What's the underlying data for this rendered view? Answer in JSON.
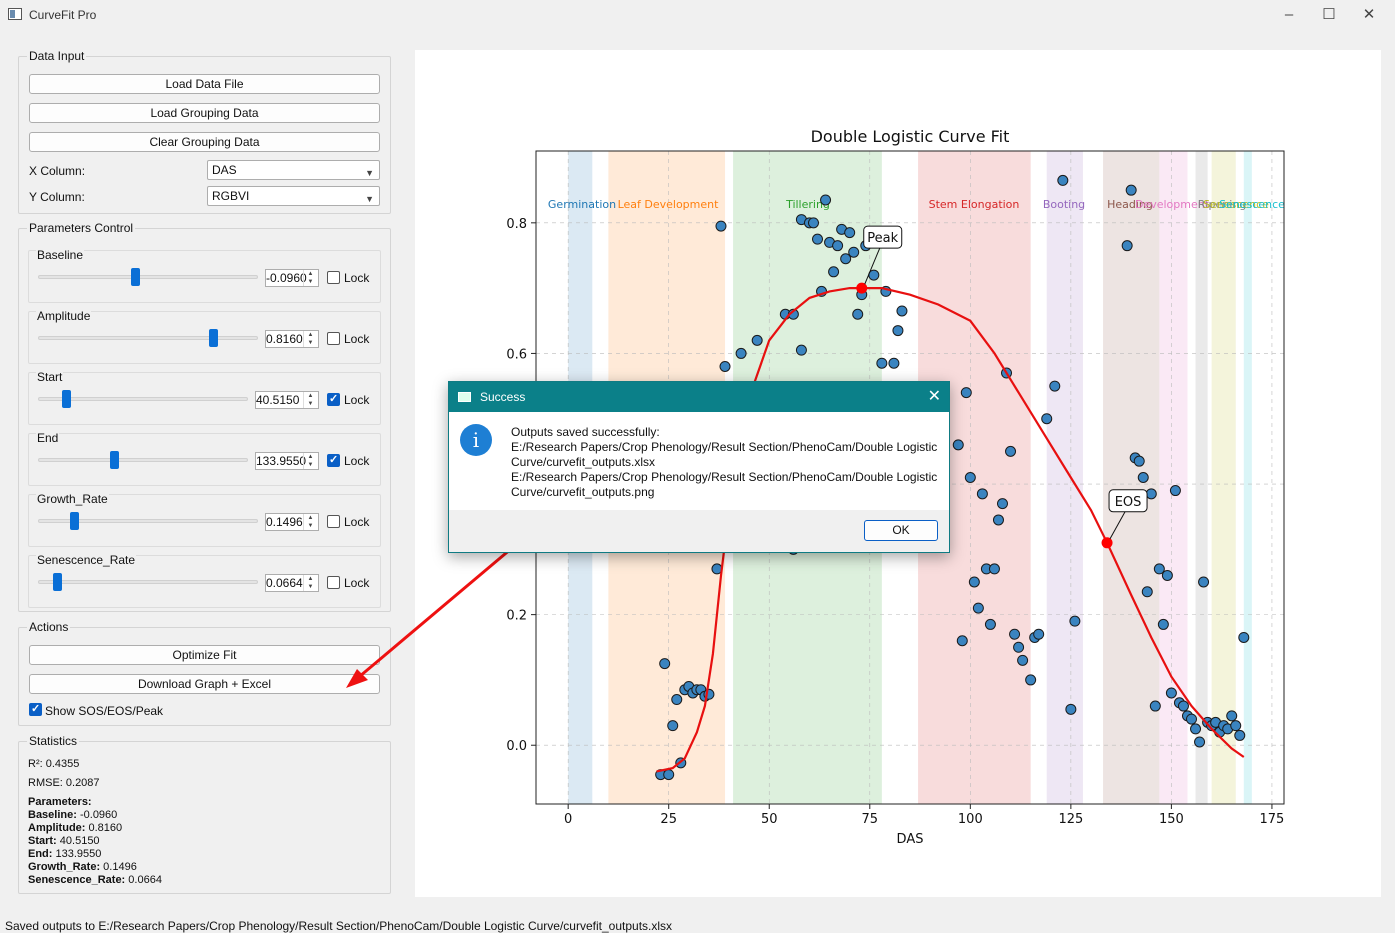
{
  "window": {
    "title": "CurveFit Pro"
  },
  "data_input": {
    "title": "Data Input",
    "load_data": "Load Data File",
    "load_grouping": "Load Grouping Data",
    "clear_grouping": "Clear Grouping Data",
    "x_label": "X Column:",
    "x_value": "DAS",
    "y_label": "Y Column:",
    "y_value": "RGBVI"
  },
  "params": {
    "title": "Parameters Control",
    "lock_label": "Lock",
    "items": [
      {
        "name": "Baseline",
        "value": "-0.0960",
        "locked": false,
        "level": 0.44
      },
      {
        "name": "Amplitude",
        "value": "0.8160",
        "locked": false,
        "level": 0.81
      },
      {
        "name": "Start",
        "value": "40.5150",
        "locked": true,
        "level": 0.12
      },
      {
        "name": "End",
        "value": "133.9550",
        "locked": true,
        "level": 0.36
      },
      {
        "name": "Growth_Rate",
        "value": "0.1496",
        "locked": false,
        "level": 0.15
      },
      {
        "name": "Senescence_Rate",
        "value": "0.0664",
        "locked": false,
        "level": 0.07
      }
    ]
  },
  "actions": {
    "title": "Actions",
    "optimize": "Optimize Fit",
    "download": "Download Graph + Excel",
    "show_markers": "Show SOS/EOS/Peak",
    "show_markers_checked": true
  },
  "statistics": {
    "title": "Statistics",
    "r2": "R²: 0.4355",
    "rmse": "RMSE: 0.2087",
    "params_header": "Parameters:",
    "lines": [
      {
        "k": "Baseline:",
        "v": " -0.0960"
      },
      {
        "k": "Amplitude:",
        "v": " 0.8160"
      },
      {
        "k": "Start:",
        "v": " 40.5150"
      },
      {
        "k": "End:",
        "v": " 133.9550"
      },
      {
        "k": "Growth_Rate:",
        "v": " 0.1496"
      },
      {
        "k": "Senescence_Rate:",
        "v": " 0.0664"
      }
    ]
  },
  "status": "Saved outputs to E:/Research Papers/Crop Phenology/Result Section/PhenoCam/Double Logistic Curve/curvefit_outputs.xlsx",
  "dialog": {
    "title": "Success",
    "message": "Outputs saved successfully:\nE:/Research Papers/Crop Phenology/Result Section/PhenoCam/Double Logistic\nCurve/curvefit_outputs.xlsx\nE:/Research Papers/Crop Phenology/Result Section/PhenoCam/Double Logistic\nCurve/curvefit_outputs.png",
    "ok": "OK"
  },
  "chart_data": {
    "type": "scatter",
    "title": "Double Logistic Curve Fit",
    "xlabel": "DAS",
    "ylabel": "",
    "xlim": [
      -8,
      178
    ],
    "ylim": [
      -0.09,
      0.91
    ],
    "xticks": [
      0,
      25,
      50,
      75,
      100,
      125,
      150,
      175
    ],
    "yticks": [
      0.0,
      0.2,
      0.4,
      0.6,
      0.8
    ],
    "grid": true,
    "stages": [
      {
        "name": "Germination",
        "x0": 0,
        "x1": 6,
        "color": "#1f77b4"
      },
      {
        "name": "Leaf Development",
        "x0": 10,
        "x1": 39,
        "color": "#ff7f0e"
      },
      {
        "name": "Tillering",
        "x0": 41,
        "x1": 78,
        "color": "#2ca02c"
      },
      {
        "name": "Stem Elongation",
        "x0": 87,
        "x1": 115,
        "color": "#d62728"
      },
      {
        "name": "Booting",
        "x0": 119,
        "x1": 128,
        "color": "#9467bd"
      },
      {
        "name": "Heading",
        "x0": 133,
        "x1": 147,
        "color": "#8c564b"
      },
      {
        "name": "Development",
        "x0": 147,
        "x1": 154,
        "color": "#e377c2"
      },
      {
        "name": "Ripening",
        "x0": 156,
        "x1": 159,
        "color": "#7f7f7f"
      },
      {
        "name": "Senescence",
        "x0": 160,
        "x1": 166,
        "color": "#bcbd22"
      },
      {
        "name": "Senescence",
        "x0": 168,
        "x1": 170,
        "color": "#17becf"
      }
    ],
    "points": [
      [
        23,
        -0.045
      ],
      [
        24,
        0.125
      ],
      [
        25,
        -0.045
      ],
      [
        26,
        0.03
      ],
      [
        27,
        0.07
      ],
      [
        28,
        -0.027
      ],
      [
        29,
        0.085
      ],
      [
        30,
        0.09
      ],
      [
        31,
        0.08
      ],
      [
        32,
        0.085
      ],
      [
        33,
        0.085
      ],
      [
        34,
        0.075
      ],
      [
        35,
        0.078
      ],
      [
        37,
        0.27
      ],
      [
        38,
        0.795
      ],
      [
        39,
        0.58
      ],
      [
        43,
        0.6
      ],
      [
        47,
        0.62
      ],
      [
        54,
        0.66
      ],
      [
        56,
        0.66
      ],
      [
        56,
        0.3
      ],
      [
        58,
        0.605
      ],
      [
        58,
        0.805
      ],
      [
        60,
        0.8
      ],
      [
        61,
        0.8
      ],
      [
        62,
        0.775
      ],
      [
        63,
        0.695
      ],
      [
        64,
        0.835
      ],
      [
        65,
        0.77
      ],
      [
        66,
        0.725
      ],
      [
        67,
        0.765
      ],
      [
        68,
        0.79
      ],
      [
        69,
        0.745
      ],
      [
        70,
        0.785
      ],
      [
        71,
        0.755
      ],
      [
        72,
        0.66
      ],
      [
        73,
        0.69
      ],
      [
        74,
        0.765
      ],
      [
        76,
        0.72
      ],
      [
        78,
        0.585
      ],
      [
        79,
        0.695
      ],
      [
        81,
        0.585
      ],
      [
        82,
        0.635
      ],
      [
        83,
        0.665
      ],
      [
        97,
        0.46
      ],
      [
        98,
        0.16
      ],
      [
        99,
        0.54
      ],
      [
        100,
        0.41
      ],
      [
        101,
        0.25
      ],
      [
        102,
        0.21
      ],
      [
        103,
        0.385
      ],
      [
        104,
        0.27
      ],
      [
        105,
        0.185
      ],
      [
        106,
        0.27
      ],
      [
        107,
        0.345
      ],
      [
        108,
        0.37
      ],
      [
        109,
        0.57
      ],
      [
        110,
        0.45
      ],
      [
        111,
        0.17
      ],
      [
        112,
        0.15
      ],
      [
        113,
        0.13
      ],
      [
        115,
        0.1
      ],
      [
        116,
        0.165
      ],
      [
        117,
        0.17
      ],
      [
        119,
        0.5
      ],
      [
        121,
        0.55
      ],
      [
        123,
        0.865
      ],
      [
        125,
        0.055
      ],
      [
        126,
        0.19
      ],
      [
        139,
        0.765
      ],
      [
        140,
        0.85
      ],
      [
        141,
        0.44
      ],
      [
        142,
        0.435
      ],
      [
        143,
        0.41
      ],
      [
        144,
        0.235
      ],
      [
        145,
        0.385
      ],
      [
        146,
        0.06
      ],
      [
        147,
        0.27
      ],
      [
        148,
        0.185
      ],
      [
        149,
        0.26
      ],
      [
        150,
        0.08
      ],
      [
        151,
        0.39
      ],
      [
        152,
        0.065
      ],
      [
        153,
        0.06
      ],
      [
        154,
        0.045
      ],
      [
        155,
        0.04
      ],
      [
        156,
        0.025
      ],
      [
        157,
        0.005
      ],
      [
        158,
        0.25
      ],
      [
        159,
        0.035
      ],
      [
        160,
        0.03
      ],
      [
        161,
        0.035
      ],
      [
        162,
        0.02
      ],
      [
        163,
        0.03
      ],
      [
        164,
        0.025
      ],
      [
        165,
        0.045
      ],
      [
        166,
        0.03
      ],
      [
        167,
        0.015
      ],
      [
        168,
        0.165
      ]
    ],
    "fit": [
      [
        22,
        -0.04
      ],
      [
        26,
        -0.035
      ],
      [
        29,
        -0.02
      ],
      [
        32,
        0.02
      ],
      [
        34,
        0.06
      ],
      [
        36,
        0.14
      ],
      [
        38,
        0.26
      ],
      [
        40,
        0.36
      ],
      [
        42,
        0.44
      ],
      [
        44,
        0.5
      ],
      [
        46,
        0.55
      ],
      [
        50,
        0.62
      ],
      [
        55,
        0.66
      ],
      [
        60,
        0.685
      ],
      [
        65,
        0.695
      ],
      [
        70,
        0.7
      ],
      [
        73,
        0.7
      ],
      [
        78,
        0.7
      ],
      [
        85,
        0.69
      ],
      [
        92,
        0.675
      ],
      [
        100,
        0.65
      ],
      [
        106,
        0.6
      ],
      [
        112,
        0.54
      ],
      [
        118,
        0.48
      ],
      [
        124,
        0.42
      ],
      [
        130,
        0.36
      ],
      [
        134,
        0.31
      ],
      [
        140,
        0.23
      ],
      [
        145,
        0.165
      ],
      [
        150,
        0.105
      ],
      [
        155,
        0.06
      ],
      [
        160,
        0.025
      ],
      [
        165,
        -0.005
      ],
      [
        168,
        -0.018
      ]
    ],
    "markers": [
      {
        "label": "Peak",
        "x": 73,
        "y": 0.7
      },
      {
        "label": "EOS",
        "x": 134,
        "y": 0.31
      }
    ]
  }
}
